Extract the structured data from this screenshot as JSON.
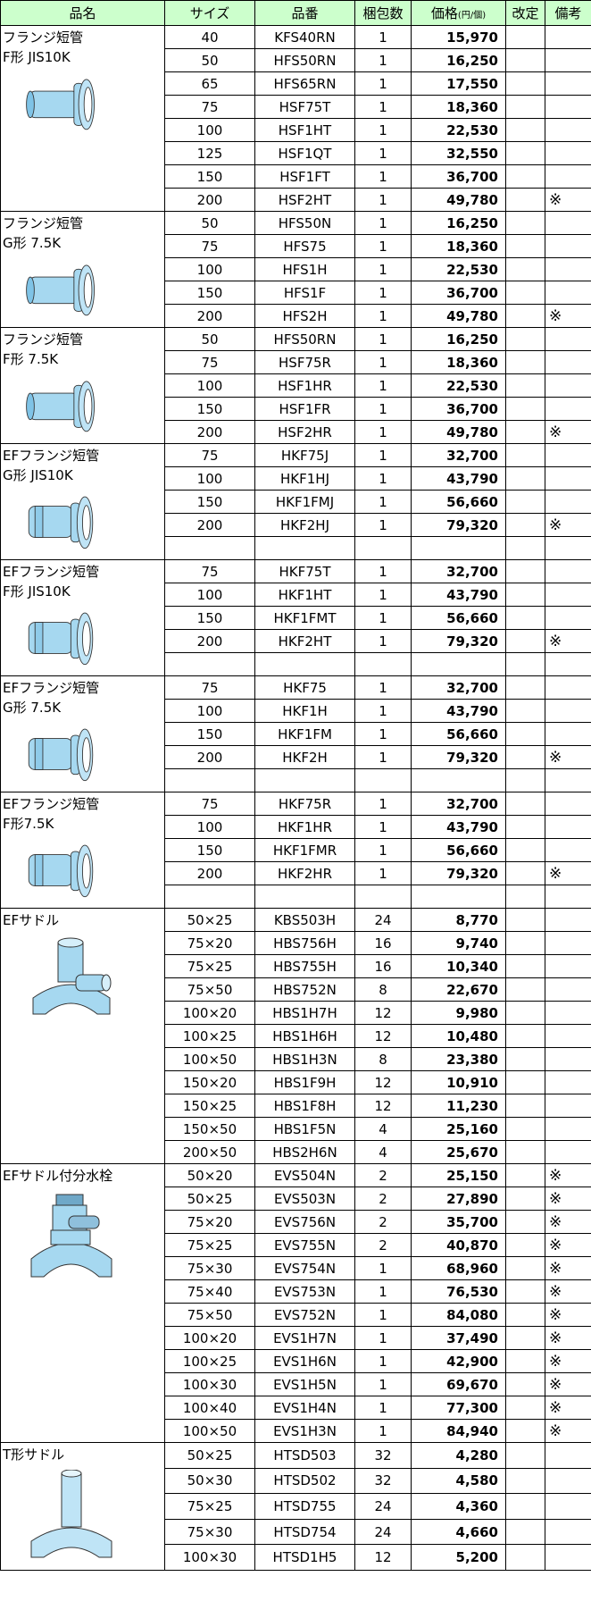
{
  "header": [
    "品名",
    "サイズ",
    "品番",
    "梱包数",
    {
      "main": "価格",
      "unit": "(円/個)"
    },
    "改定",
    "備考"
  ],
  "groups": [
    {
      "name": [
        "フランジ短管",
        "F形 JIS10K"
      ],
      "rows": [
        [
          "40",
          "KFS40RN",
          "1",
          "15,970",
          null,
          null
        ],
        [
          "50",
          "HFS50RN",
          "1",
          "16,250",
          null,
          null
        ],
        [
          "65",
          "HFS65RN",
          "1",
          "17,550",
          null,
          null
        ],
        [
          "75",
          "HSF75T",
          "1",
          "18,360",
          null,
          null
        ],
        [
          "100",
          "HSF1HT",
          "1",
          "22,530",
          null,
          null
        ],
        [
          "125",
          "HSF1QT",
          "1",
          "32,550",
          null,
          null
        ],
        [
          "150",
          "HSF1FT",
          "1",
          "36,700",
          null,
          null
        ],
        [
          "200",
          "HSF2HT",
          "1",
          "49,780",
          null,
          "※"
        ]
      ]
    },
    {
      "name": [
        "フランジ短管",
        "G形 7.5K"
      ],
      "rows": [
        [
          "50",
          "HFS50N",
          "1",
          "16,250",
          null,
          null
        ],
        [
          "75",
          "HFS75",
          "1",
          "18,360",
          null,
          null
        ],
        [
          "100",
          "HFS1H",
          "1",
          "22,530",
          null,
          null
        ],
        [
          "150",
          "HFS1F",
          "1",
          "36,700",
          null,
          null
        ],
        [
          "200",
          "HFS2H",
          "1",
          "49,780",
          null,
          "※"
        ]
      ]
    },
    {
      "name": [
        "フランジ短管",
        "F形 7.5K"
      ],
      "rows": [
        [
          "50",
          "HFS50RN",
          "1",
          "16,250",
          null,
          null
        ],
        [
          "75",
          "HSF75R",
          "1",
          "18,360",
          null,
          null
        ],
        [
          "100",
          "HSF1HR",
          "1",
          "22,530",
          null,
          null
        ],
        [
          "150",
          "HSF1FR",
          "1",
          "36,700",
          null,
          null
        ],
        [
          "200",
          "HSF2HR",
          "1",
          "49,780",
          null,
          "※"
        ]
      ]
    },
    {
      "name": [
        "EFフランジ短管",
        "G形 JIS10K"
      ],
      "rows": [
        [
          "75",
          "HKF75J",
          "1",
          "32,700",
          null,
          null
        ],
        [
          "100",
          "HKF1HJ",
          "1",
          "43,790",
          null,
          null
        ],
        [
          "150",
          "HKF1FMJ",
          "1",
          "56,660",
          null,
          null
        ],
        [
          "200",
          "HKF2HJ",
          "1",
          "79,320",
          null,
          "※"
        ],
        null
      ]
    },
    {
      "name": [
        "EFフランジ短管",
        "F形 JIS10K"
      ],
      "rows": [
        [
          "75",
          "HKF75T",
          "1",
          "32,700",
          null,
          null
        ],
        [
          "100",
          "HKF1HT",
          "1",
          "43,790",
          null,
          null
        ],
        [
          "150",
          "HKF1FMT",
          "1",
          "56,660",
          null,
          null
        ],
        [
          "200",
          "HKF2HT",
          "1",
          "79,320",
          null,
          "※"
        ],
        null
      ]
    },
    {
      "name": [
        "EFフランジ短管",
        "G形 7.5K"
      ],
      "rows": [
        [
          "75",
          "HKF75",
          "1",
          "32,700",
          null,
          null
        ],
        [
          "100",
          "HKF1H",
          "1",
          "43,790",
          null,
          null
        ],
        [
          "150",
          "HKF1FM",
          "1",
          "56,660",
          null,
          null
        ],
        [
          "200",
          "HKF2H",
          "1",
          "79,320",
          null,
          "※"
        ],
        null
      ]
    },
    {
      "name": [
        "EFフランジ短管",
        "F形7.5K"
      ],
      "rows": [
        [
          "75",
          "HKF75R",
          "1",
          "32,700",
          null,
          null
        ],
        [
          "100",
          "HKF1HR",
          "1",
          "43,790",
          null,
          null
        ],
        [
          "150",
          "HKF1FMR",
          "1",
          "56,660",
          null,
          null
        ],
        [
          "200",
          "HKF2HR",
          "1",
          "79,320",
          null,
          "※"
        ],
        null
      ]
    },
    {
      "name": [
        "EFサドル"
      ],
      "rows": [
        [
          "50×25",
          "KBS503H",
          "24",
          "8,770",
          null,
          null
        ],
        [
          "75×20",
          "HBS756H",
          "16",
          "9,740",
          null,
          null
        ],
        [
          "75×25",
          "HBS755H",
          "16",
          "10,340",
          null,
          null
        ],
        [
          "75×50",
          "HBS752N",
          "8",
          "22,670",
          null,
          null
        ],
        [
          "100×20",
          "HBS1H7H",
          "12",
          "9,980",
          null,
          null
        ],
        [
          "100×25",
          "HBS1H6H",
          "12",
          "10,480",
          null,
          null
        ],
        [
          "100×50",
          "HBS1H3N",
          "8",
          "23,380",
          null,
          null
        ],
        [
          "150×20",
          "HBS1F9H",
          "12",
          "10,910",
          null,
          null
        ],
        [
          "150×25",
          "HBS1F8H",
          "12",
          "11,230",
          null,
          null
        ],
        [
          "150×50",
          "HBS1F5N",
          "4",
          "25,160",
          null,
          null
        ],
        [
          "200×50",
          "HBS2H6N",
          "4",
          "25,670",
          null,
          null
        ]
      ]
    },
    {
      "name": [
        "EFサドル付分水栓"
      ],
      "rows": [
        [
          "50×20",
          "EVS504N",
          "2",
          "25,150",
          null,
          "※"
        ],
        [
          "50×25",
          "EVS503N",
          "2",
          "27,890",
          null,
          "※"
        ],
        [
          "75×20",
          "EVS756N",
          "2",
          "35,700",
          null,
          "※"
        ],
        [
          "75×25",
          "EVS755N",
          "2",
          "40,870",
          null,
          "※"
        ],
        [
          "75×30",
          "EVS754N",
          "1",
          "68,960",
          null,
          "※"
        ],
        [
          "75×40",
          "EVS753N",
          "1",
          "76,530",
          null,
          "※"
        ],
        [
          "75×50",
          "EVS752N",
          "1",
          "84,080",
          null,
          "※"
        ],
        [
          "100×20",
          "EVS1H7N",
          "1",
          "37,490",
          null,
          "※"
        ],
        [
          "100×25",
          "EVS1H6N",
          "1",
          "42,900",
          null,
          "※"
        ],
        [
          "100×30",
          "EVS1H5N",
          "1",
          "69,670",
          null,
          "※"
        ],
        [
          "100×40",
          "EVS1H4N",
          "1",
          "77,300",
          null,
          "※"
        ],
        [
          "100×50",
          "EVS1H3N",
          "1",
          "84,940",
          null,
          "※"
        ]
      ]
    },
    {
      "name": [
        "T形サドル"
      ],
      "rows": [
        [
          "50×25",
          "HTSD503",
          "32",
          "4,280",
          null,
          null
        ],
        [
          "50×30",
          "HTSD502",
          "32",
          "4,580",
          null,
          null
        ],
        [
          "75×25",
          "HTSD755",
          "24",
          "4,360",
          null,
          null
        ],
        [
          "75×30",
          "HTSD754",
          "24",
          "4,660",
          null,
          null
        ],
        [
          "100×30",
          "HTSD1H5",
          "12",
          "5,200",
          null,
          null
        ]
      ]
    }
  ]
}
